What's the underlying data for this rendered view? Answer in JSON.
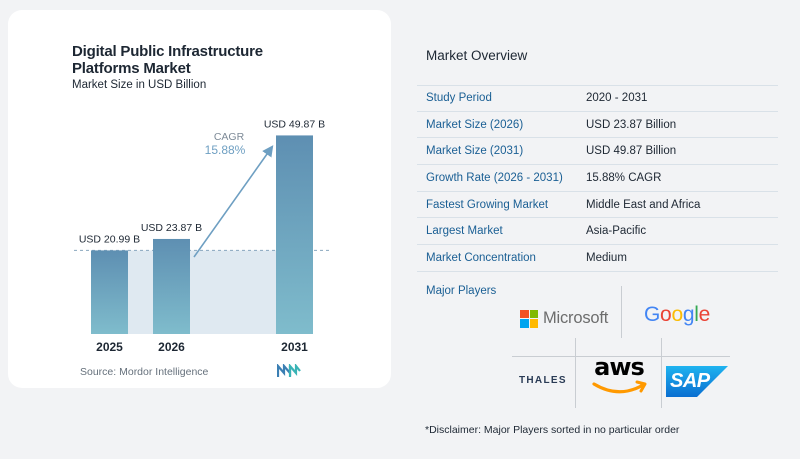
{
  "chart_data": {
    "type": "bar",
    "title": "Digital Public Infrastructure Platforms Market",
    "subtitle": "Market Size in USD Billion",
    "categories": [
      "2025",
      "2026",
      "2031"
    ],
    "values": [
      20.99,
      23.87,
      49.87
    ],
    "data_labels": [
      "USD 20.99 B",
      "USD 23.87 B",
      "USD 49.87 B"
    ],
    "ylim": [
      0,
      55
    ],
    "cagr_label": "CAGR",
    "cagr_value": "15.88%",
    "bar_color": "#6b9bbb",
    "band_color": "#dfe9f1",
    "cagr_color": "#6e9fc2",
    "grid": false
  },
  "source": "Source: Mordor Intelligence",
  "overview": {
    "title": "Market Overview",
    "rows": [
      {
        "label": "Study Period",
        "value": "2020 - 2031"
      },
      {
        "label": "Market Size (2026)",
        "value": "USD 23.87 Billion"
      },
      {
        "label": "Market Size (2031)",
        "value": "USD 49.87 Billion"
      },
      {
        "label": "Growth Rate (2026 - 2031)",
        "value": "15.88% CAGR"
      },
      {
        "label": "Fastest Growing Market",
        "value": "Middle East and Africa"
      },
      {
        "label": "Largest Market",
        "value": "Asia-Pacific"
      },
      {
        "label": "Market Concentration",
        "value": "Medium"
      }
    ]
  },
  "players": {
    "title": "Major Players",
    "microsoft": "Microsoft",
    "google": [
      "G",
      "o",
      "o",
      "g",
      "l",
      "e"
    ],
    "google_colors": [
      "#4285f4",
      "#ea4335",
      "#fbbc05",
      "#4285f4",
      "#34a853",
      "#ea4335"
    ],
    "thales": "THALES",
    "aws": "aws",
    "sap": "SAP",
    "ms_colors": [
      "#f25022",
      "#7fba00",
      "#00a4ef",
      "#ffb900"
    ]
  },
  "disclaimer": "*Disclaimer: Major Players sorted in no particular order"
}
